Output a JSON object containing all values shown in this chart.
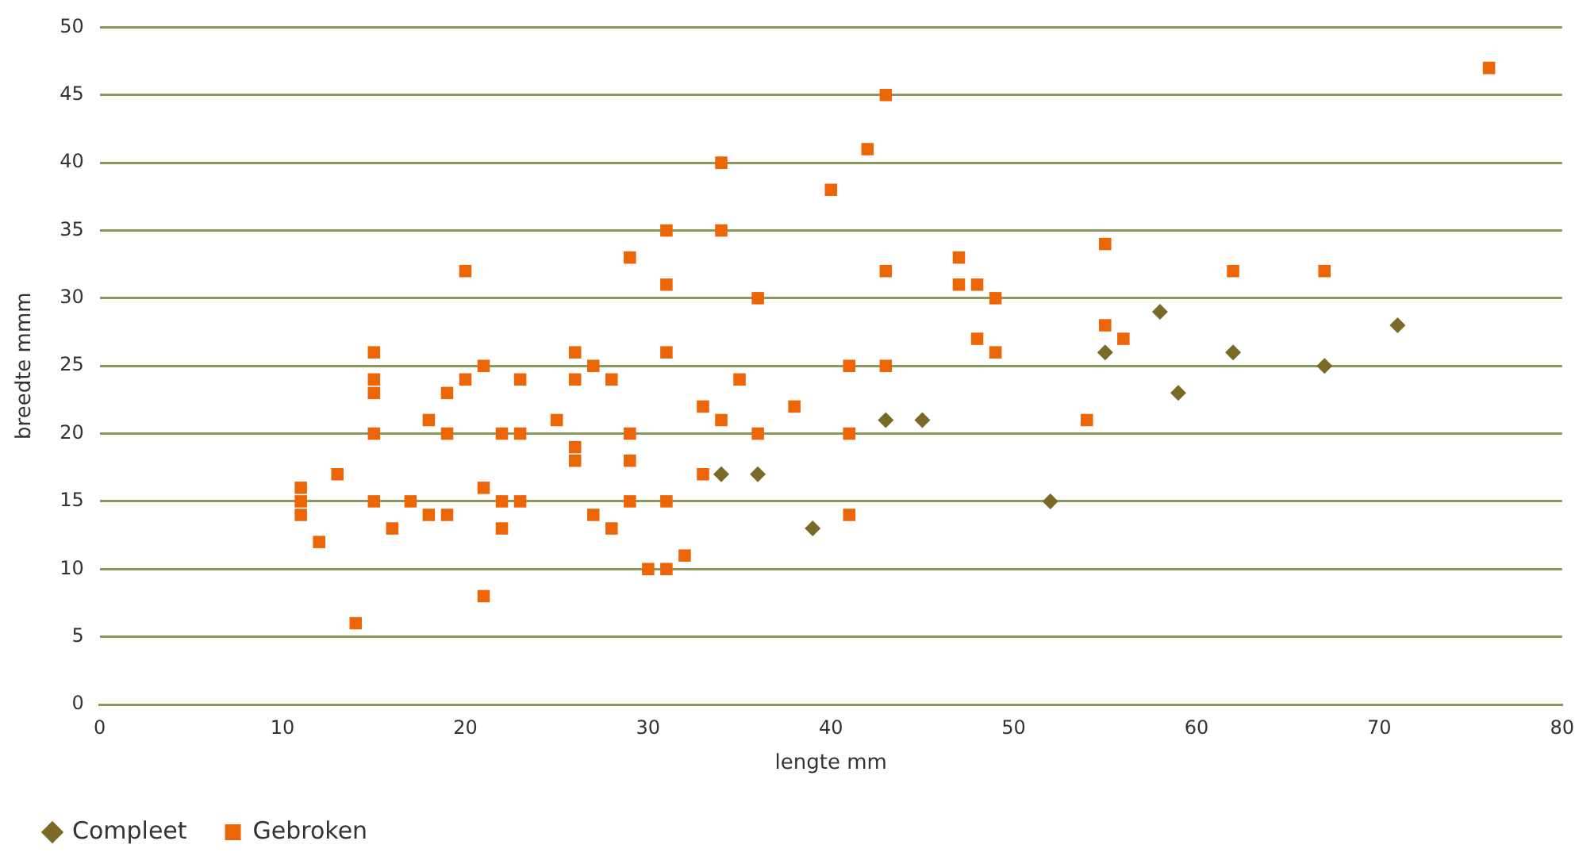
{
  "chart_data": {
    "type": "scatter",
    "xlabel": "lengte mm",
    "ylabel": "breedte mmm",
    "xlim": [
      0,
      80
    ],
    "xticks": [
      0,
      10,
      20,
      30,
      40,
      50,
      60,
      70,
      80
    ],
    "ylim": [
      0,
      50
    ],
    "yticks": [
      0,
      5,
      10,
      15,
      20,
      25,
      30,
      35,
      40,
      45,
      50
    ],
    "grid": "y",
    "legend": "bottom left",
    "series": [
      {
        "name": "Compleet",
        "color": "#7a6a28",
        "marker": "diamond",
        "x": [
          34,
          36,
          39,
          43,
          45,
          52,
          55,
          58,
          59,
          62,
          67,
          71
        ],
        "values": [
          17,
          17,
          13,
          21,
          21,
          15,
          26,
          29,
          23,
          26,
          25,
          28
        ]
      },
      {
        "name": "Gebroken",
        "color": "#ec6608",
        "marker": "square",
        "x": [
          11,
          11,
          11,
          12,
          13,
          14,
          15,
          15,
          15,
          15,
          15,
          16,
          17,
          18,
          18,
          19,
          19,
          19,
          20,
          20,
          21,
          21,
          21,
          22,
          22,
          22,
          23,
          23,
          23,
          25,
          26,
          26,
          26,
          26,
          27,
          27,
          28,
          28,
          29,
          29,
          29,
          29,
          30,
          31,
          31,
          31,
          31,
          31,
          32,
          33,
          33,
          34,
          34,
          34,
          35,
          36,
          36,
          38,
          40,
          41,
          41,
          41,
          42,
          43,
          43,
          43,
          47,
          47,
          48,
          48,
          49,
          49,
          54,
          55,
          55,
          56,
          62,
          67,
          76
        ],
        "values": [
          16,
          15,
          14,
          12,
          17,
          6,
          26,
          24,
          23,
          20,
          15,
          13,
          15,
          21,
          14,
          23,
          20,
          14,
          32,
          24,
          25,
          16,
          8,
          20,
          15,
          13,
          24,
          20,
          15,
          21,
          26,
          24,
          19,
          18,
          25,
          14,
          24,
          13,
          33,
          20,
          18,
          15,
          10,
          35,
          31,
          26,
          15,
          10,
          11,
          22,
          17,
          40,
          35,
          21,
          24,
          30,
          20,
          22,
          38,
          25,
          20,
          14,
          41,
          45,
          32,
          25,
          33,
          31,
          31,
          27,
          30,
          26,
          21,
          34,
          28,
          27,
          32,
          32,
          47
        ]
      }
    ]
  }
}
